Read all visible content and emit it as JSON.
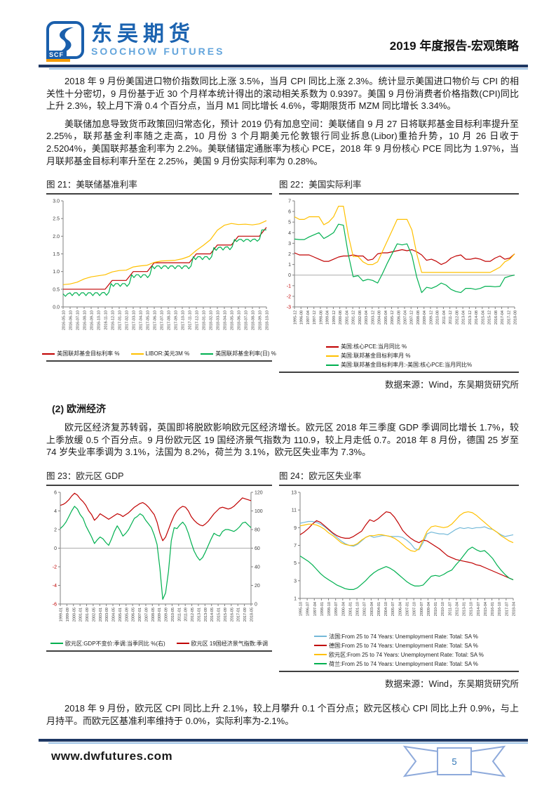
{
  "header": {
    "logo_cn": "东吴期货",
    "logo_en": "SOOCHOW FUTURES",
    "logo_badge": "SCF",
    "report_title": "2019 年度报告-宏观策略"
  },
  "paragraphs": {
    "p1": "2018 年 9 月份美国进口物价指数同比上涨 3.5%，当月 CPI 同比上涨 2.3%。统计显示美国进口物价与 CPI 的相关性十分密切，9 月份基于近 30 个月样本统计得出的滚动相关系数为 0.9397。美国 9 月份消费者价格指数(CPI)同比上升 2.3%，较上月下滑 0.4 个百分点，当月 M1 同比增长 4.6%，零期限货币 MZM 同比增长 3.34%。",
    "p2": "美联储加息导致货币政策回归常态化，预计 2019 仍有加息空间：美联储自 9 月 27 日将联邦基金目标利率提升至 2.25%，联邦基金利率随之走高，10 月份 3 个月期美元伦敦银行同业拆息(Libor)重拾升势，10 月 26 日收于 2.5204%，美国联邦基金利率为 2.2%。美联储锚定通胀率为核心 PCE，2018 年 9 月份核心 PCE 同比为 1.97%，当月联邦基金目标利率升至在 2.25%，美国 9 月份实际利率为 0.28%。",
    "section2_title": "(2) 欧洲经济",
    "p3": "欧元区经济复苏转弱，英国即将脱欧影响欧元区经济增长。欧元区 2018 年三季度 GDP 季调同比增长 1.7%，较上季放缓 0.5 个百分点。9 月份欧元区 19 国经济景气指数为 110.9，较上月走低 0.7。2018 年 8 月份，德国 25 岁至 74 岁失业率季调为 3.1%，法国为 8.2%，荷兰为 3.1%，欧元区失业率为 7.3%。",
    "p4": "2018 年 9 月份，欧元区 CPI 同比上升 2.1%，较上月攀升 0.1 个百分点；欧元区核心 CPI 同比上升 0.9%，与上月持平。而欧元区基准利率维持于 0.0%，实际利率为-2.1%。"
  },
  "figures": {
    "source": "数据来源：Wind，东吴期货研究所"
  },
  "footer": {
    "website": "www.dwfutures.com",
    "page_number": "5"
  },
  "colors": {
    "red": "#C00000",
    "yellow": "#FFC000",
    "green": "#00B050",
    "lightblue": "#74B9D8",
    "navy": "#1F3864",
    "brand_blue": "#1A5FAC"
  },
  "chart_data": [
    {
      "type": "line",
      "title": "图 21：美联储基准利率",
      "ylim": [
        0,
        3
      ],
      "yticks": [
        "3.0",
        "2.5",
        "2.0",
        "1.5",
        "1.0",
        "0.5",
        "0.0"
      ],
      "negative_red": false,
      "zero_line": false,
      "xticklabels": [
        "2016-05-10",
        "2016-06-10",
        "2016-07-10",
        "2016-08-10",
        "2016-09-10",
        "2016-10-10",
        "2016-11-10",
        "2016-12-10",
        "2017-01-10",
        "2017-02-10",
        "2017-03-10",
        "2017-04-10",
        "2017-05-10",
        "2017-06-10",
        "2017-07-10",
        "2017-08-10",
        "2017-09-10",
        "2017-10-10",
        "2017-11-10",
        "2017-12-10",
        "2018-01-10",
        "2018-02-10",
        "2018-03-10",
        "2018-04-10",
        "2018-05-10",
        "2018-06-10",
        "2018-07-10",
        "2018-08-10",
        "2018-09-10",
        "2018-10-10"
      ],
      "legend_layout": "row",
      "series": [
        {
          "name": "美国联邦基金目标利率 %",
          "color": "#C00000",
          "values": [
            0.5,
            0.5,
            0.5,
            0.5,
            0.5,
            0.5,
            0.5,
            0.75,
            0.75,
            0.75,
            1.0,
            1.0,
            1.0,
            1.25,
            1.25,
            1.25,
            1.25,
            1.25,
            1.25,
            1.5,
            1.5,
            1.5,
            1.75,
            1.75,
            1.75,
            2.0,
            2.0,
            2.0,
            2.0,
            2.25
          ]
        },
        {
          "name": "LIBOR:美元3M %",
          "color": "#FFC000",
          "values": [
            0.63,
            0.65,
            0.7,
            0.79,
            0.85,
            0.88,
            0.91,
            0.99,
            1.03,
            1.04,
            1.13,
            1.16,
            1.18,
            1.26,
            1.3,
            1.31,
            1.32,
            1.36,
            1.43,
            1.6,
            1.74,
            1.9,
            2.17,
            2.31,
            2.36,
            2.33,
            2.34,
            2.32,
            2.35,
            2.44
          ]
        },
        {
          "name": "美国联邦基金利率(日) %",
          "color": "#00B050",
          "values": [
            0.37,
            0.3,
            0.37,
            0.4,
            0.32,
            0.4,
            0.4,
            0.32,
            0.4,
            0.4,
            0.32,
            0.4,
            0.4,
            0.32,
            0.4,
            0.4,
            0.32,
            0.4,
            0.41,
            0.33,
            0.41,
            0.66,
            0.58,
            0.66,
            0.66,
            0.58,
            0.66,
            0.66,
            0.58,
            0.66,
            0.91,
            0.83,
            0.91,
            0.91,
            0.83,
            0.91,
            0.91,
            0.83,
            0.91,
            1.16,
            1.08,
            1.16,
            1.16,
            1.08,
            1.16,
            1.16,
            1.08,
            1.16,
            1.16,
            1.08,
            1.16,
            1.16,
            1.08,
            1.16,
            1.16,
            1.08,
            1.16,
            1.42,
            1.34,
            1.42,
            1.42,
            1.34,
            1.42,
            1.42,
            1.34,
            1.42,
            1.68,
            1.6,
            1.68,
            1.69,
            1.61,
            1.69,
            1.7,
            1.62,
            1.7,
            1.91,
            1.85,
            1.91,
            1.91,
            1.85,
            1.91,
            1.91,
            1.85,
            1.91,
            1.92,
            1.86,
            1.92,
            2.18,
            2.18,
            2.18
          ]
        }
      ]
    },
    {
      "type": "line",
      "title": "图 22：美国实际利率",
      "ylim": [
        -3,
        7
      ],
      "yticks": [
        "7",
        "6",
        "5",
        "4",
        "3",
        "2",
        "1",
        "0",
        "-1",
        "-2",
        "-3"
      ],
      "negative_red": true,
      "zero_line": true,
      "xticklabels": [
        "1995-12",
        "1996-08",
        "1997-04",
        "1997-12",
        "1998-08",
        "1999-04",
        "1999-12",
        "2000-08",
        "2001-04",
        "2001-12",
        "2002-08",
        "2003-04",
        "2003-12",
        "2004-08",
        "2005-04",
        "2005-12",
        "2006-08",
        "2007-04",
        "2007-12",
        "2008-08",
        "2009-04",
        "2009-12",
        "2010-08",
        "2011-04",
        "2011-12",
        "2012-08",
        "2013-04",
        "2013-12",
        "2014-08",
        "2015-04",
        "2015-12",
        "2016-08",
        "2017-04",
        "2017-12",
        "2018-08"
      ],
      "legend_layout": "column",
      "series": [
        {
          "name": "美国:核心PCE:当月同比 %",
          "color": "#C00000",
          "values": [
            2.1,
            1.9,
            1.9,
            1.9,
            1.7,
            1.5,
            1.3,
            1.3,
            1.5,
            1.7,
            1.8,
            1.8,
            1.9,
            1.8,
            1.8,
            1.4,
            1.5,
            2.0,
            2.1,
            2.1,
            2.2,
            2.3,
            2.4,
            2.3,
            2.4,
            2.2,
            1.9,
            1.4,
            1.5,
            1.3,
            1.0,
            1.2,
            1.6,
            1.8,
            1.9,
            1.5,
            1.5,
            1.6,
            1.5,
            1.3,
            1.3,
            1.6,
            1.8,
            1.5,
            1.6,
            2.0
          ]
        },
        {
          "name": "美国:联邦基金目标利率月 %",
          "color": "#FFC000",
          "values": [
            5.5,
            5.25,
            5.25,
            5.5,
            5.5,
            5.5,
            4.75,
            5.0,
            5.5,
            6.5,
            6.5,
            3.75,
            1.75,
            1.75,
            1.25,
            1.0,
            1.0,
            1.25,
            2.25,
            3.25,
            4.25,
            5.25,
            5.25,
            5.25,
            4.25,
            2.0,
            0.25,
            0.25,
            0.25,
            0.25,
            0.25,
            0.25,
            0.25,
            0.25,
            0.25,
            0.25,
            0.25,
            0.25,
            0.25,
            0.25,
            0.25,
            0.5,
            0.75,
            1.25,
            1.5,
            2.0
          ]
        },
        {
          "name": "美国:联邦基金目标利率月:-美国:核心PCE:当月同比%",
          "color": "#00B050",
          "values": [
            3.4,
            3.35,
            3.35,
            3.6,
            3.8,
            4.0,
            3.45,
            3.7,
            4.0,
            4.8,
            4.7,
            1.95,
            -0.15,
            -0.05,
            -0.55,
            -0.4,
            -0.5,
            -0.75,
            0.15,
            1.15,
            2.05,
            2.95,
            2.85,
            2.95,
            1.85,
            -0.2,
            -1.65,
            -1.15,
            -1.25,
            -1.05,
            -0.75,
            -0.95,
            -1.35,
            -1.55,
            -1.65,
            -1.25,
            -1.25,
            -1.35,
            -1.25,
            -1.05,
            -1.05,
            -1.1,
            -1.05,
            -0.25,
            -0.1,
            0.0
          ]
        }
      ]
    },
    {
      "type": "line",
      "title": "图 23：欧元区 GDP",
      "ylim": [
        -6,
        6
      ],
      "yticks": [
        "6",
        "4",
        "2",
        "0",
        "-2",
        "-4",
        "-6"
      ],
      "negative_red": true,
      "zero_line": true,
      "right": {
        "ylim": [
          0,
          120
        ],
        "yticks": [
          "120",
          "100",
          "80",
          "60",
          "40",
          "20",
          "0"
        ]
      },
      "xticklabels": [
        "1999-01",
        "1999-09",
        "2000-05",
        "2001-01",
        "2001-09",
        "2002-05",
        "2003-01",
        "2003-09",
        "2004-05",
        "2005-01",
        "2005-09",
        "2006-05",
        "2007-01",
        "2007-09",
        "2008-05",
        "2009-01",
        "2009-09",
        "2010-05",
        "2011-01",
        "2011-09",
        "2012-05",
        "2013-01",
        "2013-09",
        "2014-05",
        "2015-01",
        "2015-09",
        "2016-05",
        "2017-01",
        "2017-09",
        "2018-05"
      ],
      "legend_layout": "row",
      "series": [
        {
          "name": "欧元区:GDP不变价:季调:当季同比  %(右)",
          "color": "#00B050",
          "values": [
            2.1,
            2.4,
            2.8,
            3.4,
            4.0,
            4.5,
            4.2,
            3.6,
            3.2,
            2.4,
            1.8,
            1.2,
            0.5,
            0.9,
            1.2,
            1.0,
            0.6,
            0.3,
            1.0,
            1.8,
            2.4,
            1.9,
            1.3,
            1.6,
            2.0,
            2.6,
            3.2,
            3.4,
            3.7,
            3.5,
            3.0,
            2.6,
            2.2,
            1.4,
            0.4,
            -2.2,
            -5.5,
            -4.8,
            -2.5,
            0.8,
            2.2,
            2.1,
            2.5,
            2.8,
            2.4,
            1.6,
            0.6,
            -0.3,
            -0.9,
            -1.3,
            -1.0,
            -0.4,
            0.3,
            1.0,
            1.6,
            1.4,
            1.3,
            1.8,
            2.0,
            2.0,
            1.9,
            1.8,
            2.0,
            2.3,
            2.7,
            2.8,
            2.5,
            2.2
          ]
        },
        {
          "name": "欧元区 19国经济景气指数:季调",
          "color": "#C00000",
          "axis": "right",
          "values": [
            106,
            107,
            109,
            112,
            116,
            119,
            117,
            113,
            110,
            106,
            100,
            96,
            90,
            93,
            97,
            95,
            93,
            91,
            93,
            95,
            97,
            96,
            94,
            96,
            98,
            101,
            104,
            106,
            108,
            109,
            107,
            104,
            100,
            96,
            88,
            76,
            68,
            72,
            80,
            88,
            95,
            100,
            103,
            105,
            104,
            100,
            94,
            90,
            87,
            85,
            84,
            86,
            89,
            93,
            97,
            100,
            103,
            104,
            103,
            102,
            103,
            105,
            108,
            111,
            114,
            113,
            112,
            111
          ]
        }
      ]
    },
    {
      "type": "line",
      "title": "图 24：欧元区失业率",
      "ylim": [
        1,
        13
      ],
      "yticks": [
        "13",
        "11",
        "9",
        "7",
        "5",
        "3",
        "1"
      ],
      "negative_red": false,
      "zero_line": false,
      "xticklabels": [
        "1995-10",
        "1996-07",
        "1997-04",
        "1998-01",
        "1998-10",
        "1999-07",
        "2000-04",
        "2001-01",
        "2001-10",
        "2002-07",
        "2003-04",
        "2004-01",
        "2004-10",
        "2005-07",
        "2006-04",
        "2007-01",
        "2007-10",
        "2008-07",
        "2009-04",
        "2010-01",
        "2010-10",
        "2011-07",
        "2012-04",
        "2013-01",
        "2013-10",
        "2014-07",
        "2015-04",
        "2016-01",
        "2016-10",
        "2017-07",
        "2018-04"
      ],
      "legend_layout": "column",
      "series": [
        {
          "name": "法国:From 25 to 74 Years: Unemployment Rate: Total: SA %",
          "color": "#74B9D8",
          "values": [
            9.5,
            9.6,
            9.7,
            9.7,
            9.6,
            9.4,
            9.1,
            8.7,
            8.3,
            7.9,
            7.5,
            7.2,
            7.0,
            6.9,
            7.1,
            7.5,
            7.9,
            8.1,
            7.9,
            8.0,
            8.1,
            8.1,
            8.0,
            8.0,
            8.0,
            7.9,
            7.6,
            7.2,
            6.6,
            6.5,
            7.3,
            8.3,
            8.5,
            8.4,
            8.3,
            8.3,
            8.2,
            8.5,
            8.8,
            9.0,
            8.9,
            9.0,
            8.9,
            9.0,
            9.0,
            9.1,
            8.9,
            8.8,
            8.5,
            8.2,
            8.0,
            8.1,
            8.2
          ]
        },
        {
          "name": "德国:From 25 to 74 Years: Unemployment Rate: Total: SA %",
          "color": "#C00000",
          "values": [
            8.2,
            8.5,
            8.9,
            9.4,
            9.8,
            9.6,
            9.2,
            8.8,
            8.4,
            8.1,
            7.9,
            7.8,
            7.8,
            8.0,
            8.3,
            8.6,
            9.3,
            9.9,
            9.7,
            10.0,
            10.4,
            10.8,
            10.7,
            10.2,
            9.5,
            8.7,
            8.2,
            7.8,
            7.5,
            7.3,
            7.6,
            7.5,
            7.2,
            6.9,
            6.6,
            6.2,
            5.8,
            5.6,
            5.4,
            5.3,
            5.2,
            5.1,
            5.0,
            4.8,
            4.7,
            4.5,
            4.3,
            4.1,
            3.9,
            3.7,
            3.5,
            3.3,
            3.1
          ]
        },
        {
          "name": "欧元区:From 25 to 74 Years: Unemployment Rate: Total: SA %",
          "color": "#FFC000",
          "values": [
            9.2,
            9.3,
            9.4,
            9.4,
            9.3,
            9.1,
            8.8,
            8.4,
            8.1,
            7.7,
            7.3,
            7.1,
            7.0,
            7.0,
            7.2,
            7.6,
            7.9,
            8.1,
            8.1,
            8.2,
            8.2,
            8.1,
            8.0,
            7.8,
            7.5,
            7.1,
            6.7,
            6.4,
            6.3,
            6.6,
            7.6,
            8.6,
            9.1,
            9.2,
            9.1,
            9.0,
            9.1,
            9.4,
            9.9,
            10.4,
            10.7,
            10.8,
            10.7,
            10.4,
            10.0,
            9.6,
            9.2,
            8.8,
            8.5,
            8.1,
            7.8,
            7.5,
            7.3
          ]
        },
        {
          "name": "荷兰:From 25 to 74 Years: Unemployment Rate: Total: SA %",
          "color": "#00B050",
          "values": [
            5.8,
            5.5,
            5.2,
            4.8,
            4.3,
            3.8,
            3.4,
            3.1,
            2.8,
            2.5,
            2.3,
            2.1,
            2.0,
            2.0,
            2.2,
            2.6,
            3.0,
            3.5,
            3.9,
            4.2,
            4.4,
            4.6,
            4.4,
            4.1,
            3.7,
            3.3,
            2.9,
            2.6,
            2.4,
            2.4,
            2.5,
            3.0,
            3.5,
            3.6,
            3.5,
            3.7,
            4.0,
            4.2,
            4.8,
            5.3,
            5.9,
            6.5,
            6.8,
            6.5,
            6.3,
            6.4,
            6.0,
            5.5,
            4.8,
            4.2,
            3.7,
            3.3,
            3.1
          ]
        }
      ]
    }
  ]
}
